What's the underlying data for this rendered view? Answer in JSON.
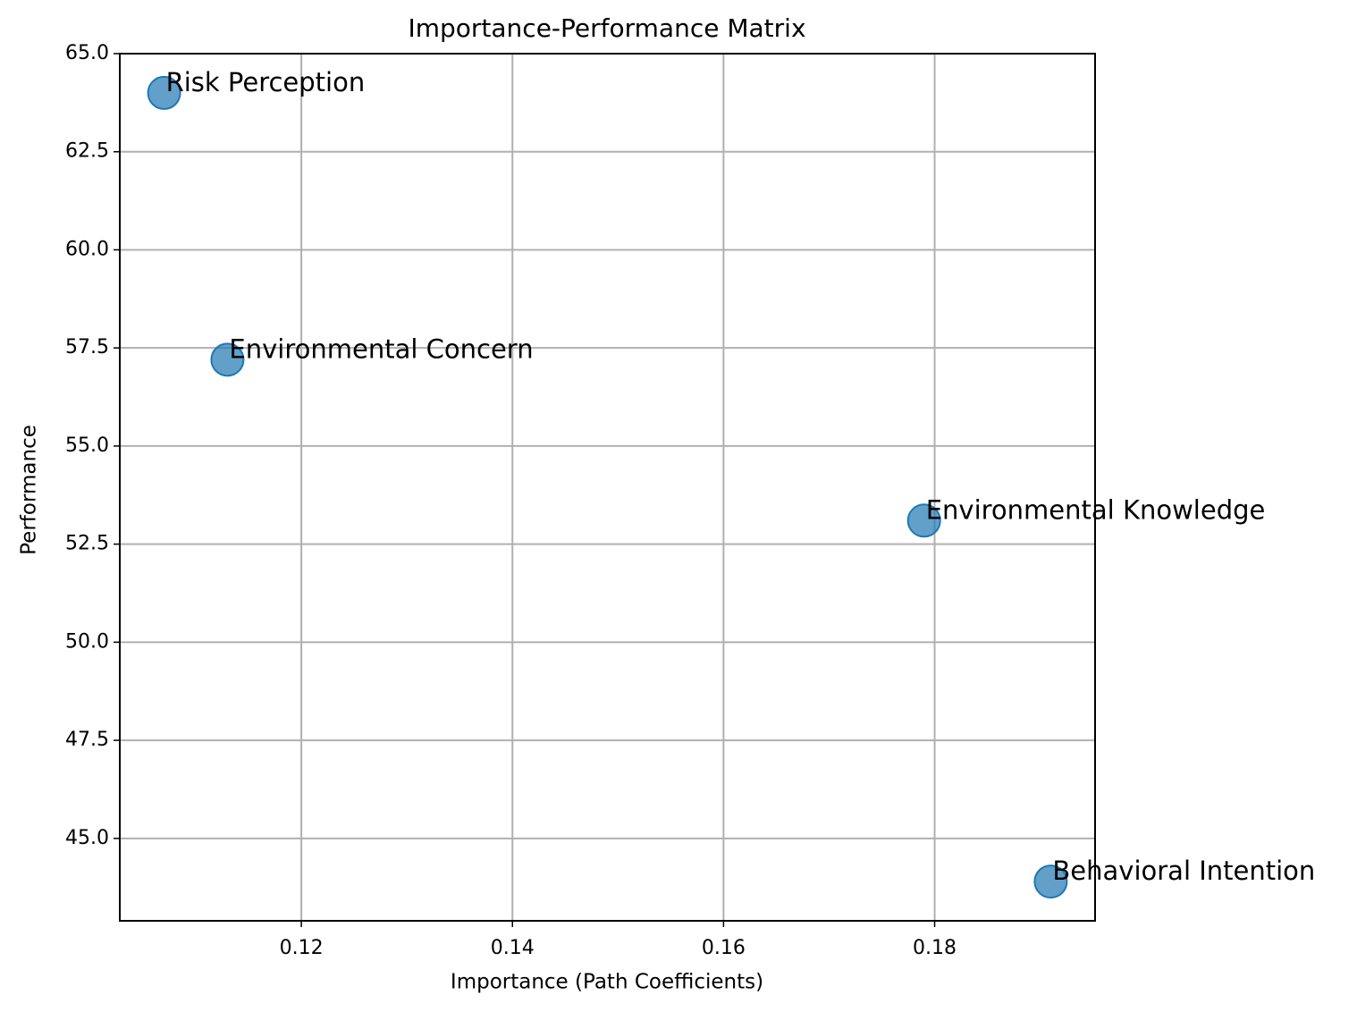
{
  "chart_data": {
    "type": "scatter",
    "title": "Importance-Performance Matrix",
    "x_label": "Importance (Path Coefficients)",
    "y_label": "Performance",
    "labels": [
      "Risk Perception",
      "Environmental Concern",
      "Environmental Knowledge",
      "Behavioral Intention"
    ],
    "x": [
      0.107,
      0.113,
      0.179,
      0.191
    ],
    "values": [
      64.0,
      57.2,
      53.1,
      43.9
    ],
    "color": "#1f77b4",
    "xlim": [
      0.1028,
      0.1952
    ],
    "ylim": [
      42.9,
      65.0
    ],
    "xticks": [
      0.12,
      0.14,
      0.16,
      0.18
    ],
    "yticks": [
      {
        "value": 45,
        "label": "45.0"
      },
      {
        "value": 47.5,
        "label": "47.5"
      },
      {
        "value": 50,
        "label": "50.0"
      },
      {
        "value": 52.5,
        "label": "52.5"
      },
      {
        "value": 55,
        "label": "55.0"
      },
      {
        "value": 57.5,
        "label": "57.5"
      },
      {
        "value": 60,
        "label": "60.0"
      },
      {
        "value": 62.5,
        "label": "62.5"
      },
      {
        "value": 65,
        "label": "65.0"
      }
    ],
    "grid": true
  }
}
